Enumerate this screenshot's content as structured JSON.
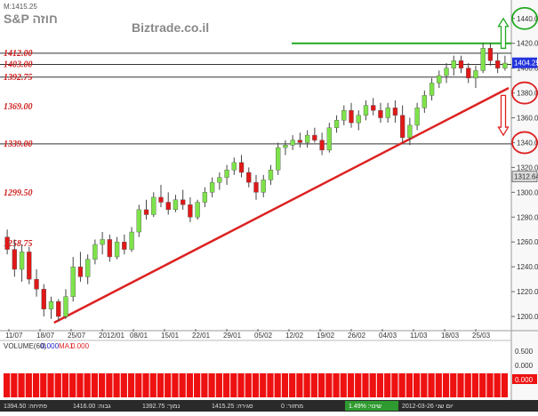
{
  "header": {
    "quote_label": "M:1415.25",
    "symbol": "S&P חוזה",
    "site": "Biztrade.co.il"
  },
  "chart_data": {
    "type": "candlestick",
    "y_ticks": [
      1200,
      1220,
      1240,
      1260,
      1280,
      1300,
      1320,
      1340,
      1360,
      1380,
      1400,
      1420,
      1440
    ],
    "ylim": [
      1190,
      1452
    ],
    "x_labels": [
      "11/07",
      "18/07",
      "25/07",
      "2012/01",
      "08/01",
      "15/01",
      "22/01",
      "29/01",
      "05/02",
      "12/02",
      "19/02",
      "26/02",
      "04/03",
      "11/03",
      "18/03",
      "25/03"
    ],
    "level_labels": [
      {
        "text": "1412.00",
        "value": 1412
      },
      {
        "text": "1403.00",
        "value": 1403
      },
      {
        "text": "1392.75",
        "value": 1392.75
      },
      {
        "text": "1369.00",
        "value": 1369
      },
      {
        "text": "1339.00",
        "value": 1339
      },
      {
        "text": "1299.50",
        "value": 1299.5
      },
      {
        "text": "1258.75",
        "value": 1258.75
      }
    ],
    "horizontal_lines": [
      1412,
      1403,
      1392.75,
      1339
    ],
    "target_line": {
      "value": 1420,
      "color": "#22aa22"
    },
    "trendline": {
      "from": [
        0,
        1195
      ],
      "to": [
        100,
        1384
      ],
      "color": "#dd2222"
    },
    "current_price": {
      "text": "1404.25",
      "value": 1404.25
    },
    "secondary_price": {
      "text": "1312.64",
      "value": 1312.64
    },
    "circled_levels": [
      {
        "value": 1440,
        "color": "#22aa22"
      },
      {
        "value": 1380,
        "color": "#dd2222"
      },
      {
        "value": 1340,
        "color": "#dd2222"
      }
    ],
    "arrows": [
      {
        "direction": "up",
        "from": 1416,
        "to": 1440,
        "color": "#22aa22"
      },
      {
        "direction": "down",
        "from": 1378,
        "to": 1346,
        "color": "#dd2222"
      }
    ],
    "candles": [
      {
        "o": 1264,
        "h": 1270,
        "l": 1250,
        "c": 1254
      },
      {
        "o": 1254,
        "h": 1262,
        "l": 1232,
        "c": 1238
      },
      {
        "o": 1238,
        "h": 1258,
        "l": 1228,
        "c": 1252
      },
      {
        "o": 1252,
        "h": 1256,
        "l": 1226,
        "c": 1230
      },
      {
        "o": 1230,
        "h": 1238,
        "l": 1216,
        "c": 1222
      },
      {
        "o": 1222,
        "h": 1226,
        "l": 1200,
        "c": 1206
      },
      {
        "o": 1206,
        "h": 1216,
        "l": 1198,
        "c": 1212
      },
      {
        "o": 1212,
        "h": 1214,
        "l": 1196,
        "c": 1200
      },
      {
        "o": 1200,
        "h": 1222,
        "l": 1198,
        "c": 1216
      },
      {
        "o": 1216,
        "h": 1248,
        "l": 1212,
        "c": 1240
      },
      {
        "o": 1240,
        "h": 1252,
        "l": 1228,
        "c": 1232
      },
      {
        "o": 1232,
        "h": 1250,
        "l": 1226,
        "c": 1246
      },
      {
        "o": 1246,
        "h": 1262,
        "l": 1242,
        "c": 1258
      },
      {
        "o": 1258,
        "h": 1268,
        "l": 1250,
        "c": 1262
      },
      {
        "o": 1262,
        "h": 1266,
        "l": 1244,
        "c": 1248
      },
      {
        "o": 1248,
        "h": 1264,
        "l": 1246,
        "c": 1260
      },
      {
        "o": 1260,
        "h": 1266,
        "l": 1250,
        "c": 1254
      },
      {
        "o": 1254,
        "h": 1272,
        "l": 1252,
        "c": 1268
      },
      {
        "o": 1268,
        "h": 1290,
        "l": 1264,
        "c": 1286
      },
      {
        "o": 1286,
        "h": 1294,
        "l": 1278,
        "c": 1282
      },
      {
        "o": 1282,
        "h": 1300,
        "l": 1280,
        "c": 1296
      },
      {
        "o": 1296,
        "h": 1306,
        "l": 1288,
        "c": 1292
      },
      {
        "o": 1292,
        "h": 1300,
        "l": 1282,
        "c": 1286
      },
      {
        "o": 1286,
        "h": 1298,
        "l": 1284,
        "c": 1294
      },
      {
        "o": 1294,
        "h": 1302,
        "l": 1286,
        "c": 1290
      },
      {
        "o": 1290,
        "h": 1296,
        "l": 1276,
        "c": 1280
      },
      {
        "o": 1280,
        "h": 1294,
        "l": 1278,
        "c": 1292
      },
      {
        "o": 1292,
        "h": 1304,
        "l": 1288,
        "c": 1300
      },
      {
        "o": 1300,
        "h": 1312,
        "l": 1296,
        "c": 1308
      },
      {
        "o": 1308,
        "h": 1316,
        "l": 1302,
        "c": 1312
      },
      {
        "o": 1312,
        "h": 1322,
        "l": 1306,
        "c": 1318
      },
      {
        "o": 1318,
        "h": 1328,
        "l": 1314,
        "c": 1324
      },
      {
        "o": 1324,
        "h": 1330,
        "l": 1312,
        "c": 1316
      },
      {
        "o": 1316,
        "h": 1320,
        "l": 1304,
        "c": 1308
      },
      {
        "o": 1308,
        "h": 1314,
        "l": 1294,
        "c": 1300
      },
      {
        "o": 1300,
        "h": 1314,
        "l": 1296,
        "c": 1310
      },
      {
        "o": 1310,
        "h": 1322,
        "l": 1306,
        "c": 1318
      },
      {
        "o": 1318,
        "h": 1340,
        "l": 1314,
        "c": 1336
      },
      {
        "o": 1336,
        "h": 1342,
        "l": 1330,
        "c": 1338
      },
      {
        "o": 1338,
        "h": 1346,
        "l": 1334,
        "c": 1342
      },
      {
        "o": 1342,
        "h": 1348,
        "l": 1336,
        "c": 1340
      },
      {
        "o": 1340,
        "h": 1350,
        "l": 1336,
        "c": 1346
      },
      {
        "o": 1346,
        "h": 1352,
        "l": 1340,
        "c": 1342
      },
      {
        "o": 1342,
        "h": 1348,
        "l": 1330,
        "c": 1334
      },
      {
        "o": 1334,
        "h": 1356,
        "l": 1332,
        "c": 1352
      },
      {
        "o": 1352,
        "h": 1362,
        "l": 1348,
        "c": 1358
      },
      {
        "o": 1358,
        "h": 1370,
        "l": 1354,
        "c": 1366
      },
      {
        "o": 1366,
        "h": 1372,
        "l": 1352,
        "c": 1356
      },
      {
        "o": 1356,
        "h": 1366,
        "l": 1350,
        "c": 1362
      },
      {
        "o": 1362,
        "h": 1374,
        "l": 1358,
        "c": 1370
      },
      {
        "o": 1370,
        "h": 1376,
        "l": 1362,
        "c": 1366
      },
      {
        "o": 1366,
        "h": 1372,
        "l": 1356,
        "c": 1360
      },
      {
        "o": 1360,
        "h": 1372,
        "l": 1356,
        "c": 1368
      },
      {
        "o": 1368,
        "h": 1374,
        "l": 1356,
        "c": 1362
      },
      {
        "o": 1362,
        "h": 1370,
        "l": 1340,
        "c": 1344
      },
      {
        "o": 1344,
        "h": 1360,
        "l": 1338,
        "c": 1354
      },
      {
        "o": 1354,
        "h": 1372,
        "l": 1350,
        "c": 1368
      },
      {
        "o": 1368,
        "h": 1382,
        "l": 1364,
        "c": 1378
      },
      {
        "o": 1378,
        "h": 1392,
        "l": 1374,
        "c": 1388
      },
      {
        "o": 1388,
        "h": 1398,
        "l": 1384,
        "c": 1394
      },
      {
        "o": 1394,
        "h": 1404,
        "l": 1388,
        "c": 1400
      },
      {
        "o": 1400,
        "h": 1410,
        "l": 1394,
        "c": 1406
      },
      {
        "o": 1406,
        "h": 1410,
        "l": 1396,
        "c": 1400
      },
      {
        "o": 1400,
        "h": 1404,
        "l": 1388,
        "c": 1392
      },
      {
        "o": 1392,
        "h": 1402,
        "l": 1384,
        "c": 1398
      },
      {
        "o": 1398,
        "h": 1420,
        "l": 1396,
        "c": 1416
      },
      {
        "o": 1416,
        "h": 1420,
        "l": 1402,
        "c": 1406
      },
      {
        "o": 1406,
        "h": 1412,
        "l": 1396,
        "c": 1400
      },
      {
        "o": 1400,
        "h": 1410,
        "l": 1398,
        "c": 1404
      }
    ]
  },
  "volume_panel": {
    "title": "VOLUME(60)",
    "value": "0.000",
    "ma_label": "MA1",
    "ma_value": "0.000",
    "axis_ticks": [
      "0.500",
      "0.000"
    ],
    "last_value": "0.000"
  },
  "status_bar": {
    "items": [
      "1394.50 :פתיחה",
      "1416.00 :גבוה",
      "1392.75 :נמוך",
      "1415.25 :סגירה",
      "0 :מחזור"
    ],
    "change_text": "1.49% :שינוי",
    "date_text": "2012-03-26 יום שני"
  }
}
